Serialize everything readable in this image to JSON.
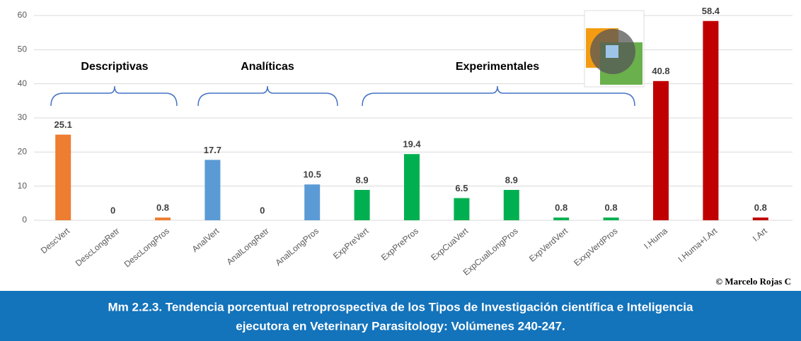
{
  "chart_data": {
    "type": "bar",
    "categories": [
      "DescVert",
      "DescLongRetr",
      "DescLongPros",
      "AnalVert",
      "AnalLongRetr",
      "AnalLongPros",
      "ExpPreVert",
      "ExpPrePros",
      "ExpCuaVert",
      "ExpCualLongPros",
      "ExpVerdVert",
      "ExxpVerdPros",
      "I.Huma",
      "I.Huma+I.Art",
      "I.Art"
    ],
    "values": [
      25.1,
      0,
      0.8,
      17.7,
      0,
      10.5,
      8.9,
      19.4,
      6.5,
      8.9,
      0.8,
      0.8,
      40.8,
      58.4,
      0.8
    ],
    "colors": [
      "#ed7d31",
      "#ed7d31",
      "#ed7d31",
      "#5b9bd5",
      "#5b9bd5",
      "#5b9bd5",
      "#00b050",
      "#00b050",
      "#00b050",
      "#00b050",
      "#00b050",
      "#00b050",
      "#c00000",
      "#c00000",
      "#c00000"
    ],
    "ylim": [
      0,
      60
    ],
    "yticks": [
      0,
      10,
      20,
      30,
      40,
      50,
      60
    ],
    "grid": true,
    "annotations": [
      "Descriptivas",
      "Analíticas",
      "Experimentales"
    ],
    "credit": "© Marcelo Rojas C",
    "caption": [
      "Mm 2.2.3. Tendencia porcentual retroprospectiva de los Tipos de Investigación científica e Inteligencia",
      "ejecutora en Veterinary Parasitology: Volúmenes 240-247."
    ]
  }
}
